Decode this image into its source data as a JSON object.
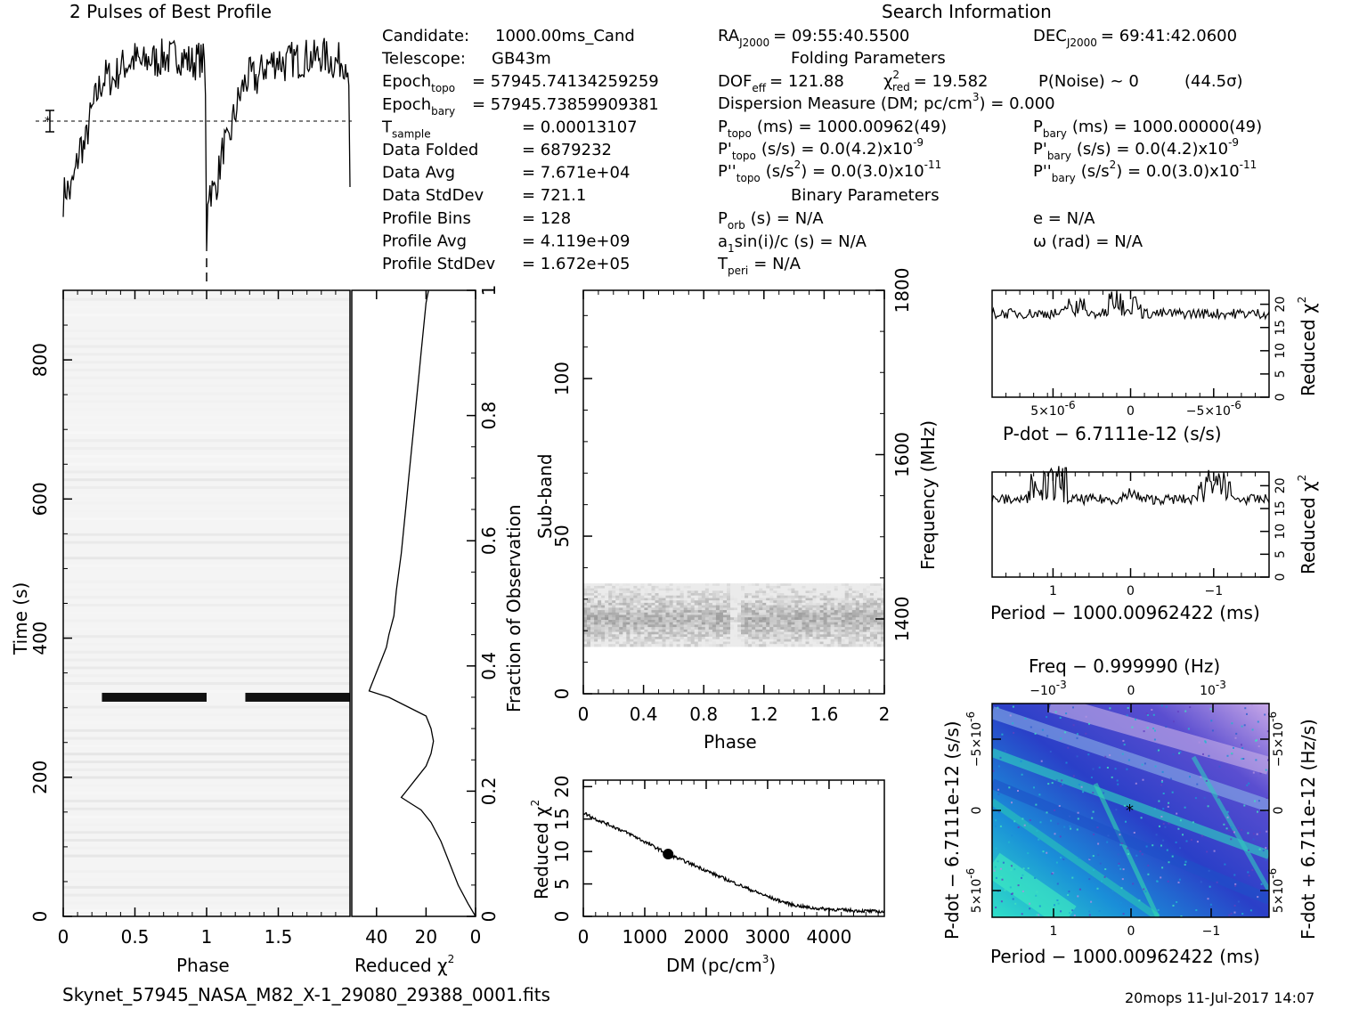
{
  "header": {
    "profile_title": "2 Pulses of Best Profile",
    "search_title": "Search Information",
    "footer_file": "Skynet_57945_NASA_M82_X-1_29080_29388_0001.fits",
    "footer_stamp": "20mops 11-Jul-2017 14:07"
  },
  "info_left": [
    {
      "label": "Candidate:",
      "value": "1000.00ms_Cand"
    },
    {
      "label": "Telescope:",
      "value": "GB43m"
    },
    {
      "label": "Epoch",
      "sub": "topo",
      "value": "= 57945.74134259259"
    },
    {
      "label": "Epoch",
      "sub": "bary",
      "value": "= 57945.73859909381"
    },
    {
      "label": "T",
      "sub": "sample",
      "value": "=   0.00013107"
    },
    {
      "label": "Data Folded",
      "value": "=   6879232"
    },
    {
      "label": "Data Avg",
      "value": "=   7.671e+04"
    },
    {
      "label": "Data StdDev",
      "value": "=   721.1"
    },
    {
      "label": "Profile Bins",
      "value": "=   128"
    },
    {
      "label": "Profile Avg",
      "value": "=   4.119e+09"
    },
    {
      "label": "Profile StdDev",
      "value": "=   1.672e+05"
    }
  ],
  "info_mid": {
    "ra": "RA",
    "ra_sub": "J2000",
    "ra_val": "= 09:55:40.5500",
    "dec": "DEC",
    "dec_sub": "J2000",
    "dec_val": "= 69:41:42.0600",
    "folding_title": "Folding Parameters",
    "dof": "DOF",
    "dof_sub": "eff",
    "dof_val": "= 121.88",
    "chi": "χ",
    "chi_sup": "2",
    "chi_sub": "red",
    "chi_val": "= 19.582",
    "pnoise": "P(Noise) ~ 0",
    "sigma": "(44.5σ)",
    "dm": "Dispersion Measure (DM; pc/cm",
    "dm_sup": "3",
    "dm_val": ") = 0.000",
    "ptopo": "P",
    "ptopo_sub": "topo",
    "ptopo_val": "(ms) =   1000.00962(49)",
    "pbary": "P",
    "pbary_sub": "bary",
    "pbary_val": "(ms) =   1000.00000(49)",
    "pdtopo": "P'",
    "pdtopo_sub": "topo",
    "pdtopo_val": "(s/s) = 0.0(4.2)x10",
    "pd_exp": "-9",
    "pdbary": "P'",
    "pdbary_sub": "bary",
    "pdbary_val": "(s/s) = 0.0(4.2)x10",
    "pddtopo": "P''",
    "pddtopo_sub": "topo",
    "pddtopo_val": "(s/s",
    "pdd_sup": "2",
    "pdd_val2": ") = 0.0(3.0)x10",
    "pdd_exp": "-11",
    "pddbary": "P''",
    "pddbary_sub": "bary",
    "binary_title": "Binary Parameters",
    "porb": "P",
    "porb_sub": "orb",
    "porb_val": "(s) = N/A",
    "a1": "a",
    "a1_sub": "1",
    "a1_val": "sin(i)/c (s) = N/A",
    "tperi": "T",
    "tperi_sub": "peri",
    "tperi_val": "= N/A",
    "ecc": "e = N/A",
    "omega": "ω (rad) = N/A"
  },
  "chart_data": [
    {
      "type": "line",
      "title": "2 Pulses of Best Profile",
      "description_key": "profile",
      "x_range": [
        0,
        2
      ],
      "shape_points": [
        [
          0.0,
          0.25
        ],
        [
          0.02,
          0.3
        ],
        [
          0.05,
          0.27
        ],
        [
          0.08,
          0.35
        ],
        [
          0.12,
          0.5
        ],
        [
          0.15,
          0.48
        ],
        [
          0.18,
          0.6
        ],
        [
          0.22,
          0.7
        ],
        [
          0.26,
          0.78
        ],
        [
          0.3,
          0.82
        ],
        [
          0.35,
          0.8
        ],
        [
          0.4,
          0.86
        ],
        [
          0.45,
          0.88
        ],
        [
          0.5,
          0.9
        ],
        [
          0.55,
          0.87
        ],
        [
          0.6,
          0.9
        ],
        [
          0.65,
          0.89
        ],
        [
          0.7,
          0.91
        ],
        [
          0.75,
          0.9
        ],
        [
          0.8,
          0.92
        ],
        [
          0.85,
          0.9
        ],
        [
          0.9,
          0.88
        ],
        [
          0.95,
          0.9
        ],
        [
          0.99,
          0.88
        ],
        [
          1.0,
          0.05
        ]
      ]
    },
    {
      "type": "heatmap",
      "description_key": "time_phase",
      "xlabel": "Phase",
      "ylabel": "Time (s)",
      "x_ticks": [
        "0",
        "0.5",
        "1",
        "1.5"
      ],
      "x_tick_values": [
        0,
        0.5,
        1,
        1.5
      ],
      "y_ticks": [
        "0",
        "200",
        "400",
        "600",
        "800"
      ],
      "y_tick_values": [
        0,
        200,
        400,
        600,
        800
      ],
      "xlim": [
        0,
        2
      ],
      "ylim": [
        0,
        900
      ],
      "pulse_time": 315
    },
    {
      "type": "line",
      "description_key": "reduced_chi_time",
      "xlabel": "Reduced χ",
      "xlabel_sup": "2",
      "ylabel": "Fraction of Observation",
      "x_ticks": [
        "40",
        "20",
        "0"
      ],
      "x_tick_values": [
        40,
        20,
        0
      ],
      "y_ticks": [
        "0",
        "0.2",
        "0.4",
        "0.6",
        "0.8",
        "1"
      ],
      "y_tick_values": [
        0,
        0.2,
        0.4,
        0.6,
        0.8,
        1
      ],
      "xlim": [
        50,
        0
      ],
      "ylim": [
        0,
        1
      ],
      "points": [
        [
          0,
          0
        ],
        [
          3,
          0.02
        ],
        [
          7,
          0.05
        ],
        [
          10,
          0.08
        ],
        [
          14,
          0.12
        ],
        [
          18,
          0.15
        ],
        [
          22,
          0.17
        ],
        [
          26,
          0.18
        ],
        [
          30,
          0.19
        ],
        [
          28,
          0.2
        ],
        [
          24,
          0.22
        ],
        [
          20,
          0.24
        ],
        [
          18,
          0.26
        ],
        [
          17,
          0.28
        ],
        [
          18,
          0.3
        ],
        [
          20,
          0.32
        ],
        [
          25,
          0.33
        ],
        [
          35,
          0.35
        ],
        [
          43,
          0.36
        ],
        [
          42,
          0.37
        ],
        [
          40,
          0.39
        ],
        [
          38,
          0.41
        ],
        [
          36,
          0.43
        ],
        [
          35,
          0.45
        ],
        [
          33,
          0.48
        ],
        [
          32,
          0.52
        ],
        [
          31,
          0.55
        ],
        [
          30,
          0.58
        ],
        [
          29,
          0.62
        ],
        [
          28,
          0.66
        ],
        [
          27,
          0.7
        ],
        [
          26,
          0.74
        ],
        [
          25,
          0.78
        ],
        [
          24,
          0.82
        ],
        [
          23,
          0.86
        ],
        [
          22,
          0.9
        ],
        [
          21,
          0.94
        ],
        [
          20,
          0.98
        ],
        [
          19,
          1.0
        ]
      ]
    },
    {
      "type": "heatmap",
      "description_key": "subband_phase",
      "xlabel": "Phase",
      "ylabel": "Sub-band",
      "y2label": "Frequency (MHz)",
      "x_ticks": [
        "0",
        "0.4",
        "0.8",
        "1.2",
        "1.6",
        "2"
      ],
      "x_tick_values": [
        0,
        0.4,
        0.8,
        1.2,
        1.6,
        2
      ],
      "y_ticks": [
        "0",
        "50",
        "100"
      ],
      "y_tick_values": [
        0,
        50,
        100
      ],
      "y2_ticks": [
        "1400",
        "1600",
        "1800"
      ],
      "y2_tick_values": [
        1400,
        1600,
        1800
      ],
      "xlim": [
        0,
        2
      ],
      "ylim": [
        0,
        128
      ],
      "band_range": [
        15,
        35
      ]
    },
    {
      "type": "line",
      "description_key": "dm_chi",
      "xlabel": "DM (pc/cm",
      "xlabel_sup": "3",
      "xlabel_end": ")",
      "ylabel": "Reduced χ",
      "ylabel_sup": "2",
      "x_ticks": [
        "0",
        "1000",
        "2000",
        "3000",
        "4000"
      ],
      "x_tick_values": [
        0,
        1000,
        2000,
        3000,
        4000
      ],
      "y_ticks": [
        "0",
        "5",
        "10",
        "15",
        "20"
      ],
      "y_tick_values": [
        0,
        5,
        10,
        15,
        20
      ],
      "xlim": [
        0,
        4900
      ],
      "ylim": [
        0,
        21
      ],
      "points": [
        [
          0,
          16
        ],
        [
          200,
          15
        ],
        [
          500,
          13.8
        ],
        [
          800,
          12.5
        ],
        [
          1100,
          11
        ],
        [
          1300,
          10
        ],
        [
          1400,
          9.5
        ],
        [
          1600,
          8.7
        ],
        [
          1900,
          7.5
        ],
        [
          2200,
          6.2
        ],
        [
          2500,
          5
        ],
        [
          2800,
          3.8
        ],
        [
          3100,
          2.7
        ],
        [
          3400,
          1.8
        ],
        [
          3700,
          1.3
        ],
        [
          4000,
          1.1
        ],
        [
          4400,
          0.9
        ],
        [
          4900,
          0.7
        ]
      ]
    },
    {
      "type": "line",
      "description_key": "pdot_chi",
      "xlabel": "P-dot − 6.7111e-12 (s/s)",
      "ylabel": "Reduced χ",
      "ylabel_sup": "2",
      "x_ticks": [
        "5×10",
        "0",
        "−5×10"
      ],
      "x_tick_exp": "-6",
      "y_ticks": [
        "0",
        "5",
        "10",
        "15",
        "20"
      ],
      "y_tick_values": [
        0,
        5,
        10,
        15,
        20
      ],
      "ylim": [
        0,
        23
      ],
      "baseline": 18
    },
    {
      "type": "line",
      "description_key": "period_chi",
      "xlabel": "Period − 1000.00962422 (ms)",
      "ylabel": "Reduced χ",
      "ylabel_sup": "2",
      "x_ticks": [
        "1",
        "0",
        "−1"
      ],
      "y_ticks": [
        "0",
        "5",
        "10",
        "15",
        "20"
      ],
      "y_tick_values": [
        0,
        5,
        10,
        15,
        20
      ],
      "ylim": [
        0,
        23
      ],
      "baseline": 17
    },
    {
      "type": "heatmap",
      "description_key": "pdot_period",
      "title": "Freq − 0.999990 (Hz)",
      "xlabel": "Period − 1000.00962422 (ms)",
      "ylabel": "P-dot − 6.7111e-12 (s/s)",
      "y2label": "F-dot + 6.711e-12 (Hz/s)",
      "x_ticks": [
        "1",
        "0",
        "−1"
      ],
      "top_ticks": [
        "−10",
        "0",
        "10"
      ],
      "top_exp": "-3",
      "y_ticks": [
        "5×10",
        "0",
        "−5×10"
      ],
      "y_exp": "-6"
    }
  ]
}
